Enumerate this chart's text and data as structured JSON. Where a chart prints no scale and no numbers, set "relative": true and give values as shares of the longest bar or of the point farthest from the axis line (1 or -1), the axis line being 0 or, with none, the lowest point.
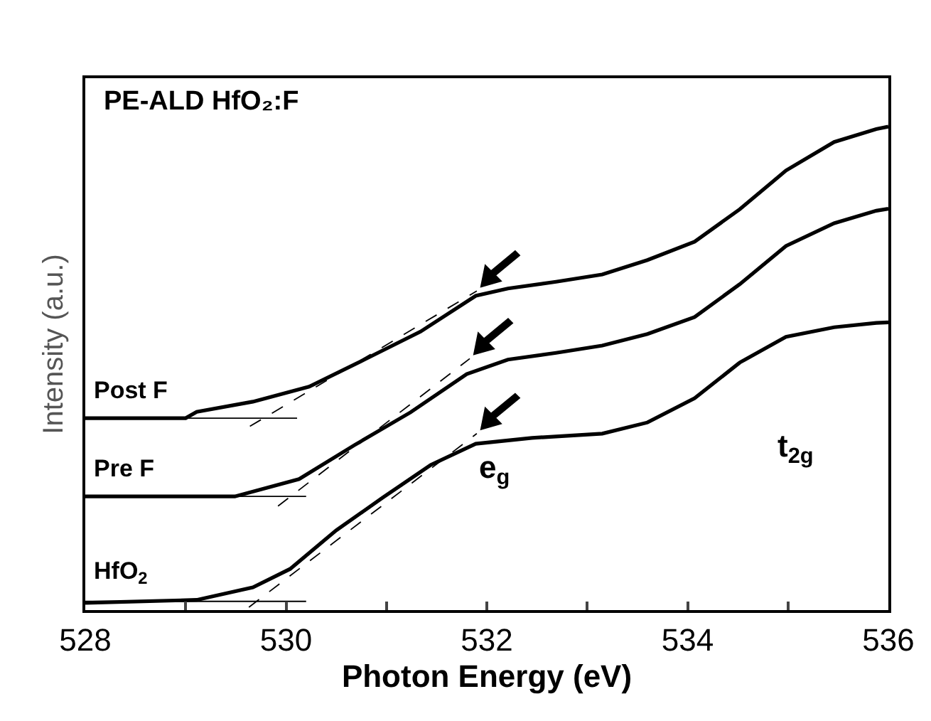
{
  "chart_data": {
    "type": "line",
    "title": "PE-ALD HfO₂:F",
    "xlabel": "Photon Energy (eV)",
    "ylabel": "Intensity (a.u.)",
    "relative": true,
    "xlim": [
      528,
      536
    ],
    "xticks": [
      528,
      {
        "value": 529,
        "label": null
      },
      530,
      {
        "value": 531,
        "label": null
      },
      532,
      {
        "value": 533,
        "label": null
      },
      534,
      {
        "value": 535,
        "label": null
      },
      536
    ],
    "tick_labels": "x",
    "legend": false,
    "marker": "none",
    "series": [
      {
        "name": "Post F",
        "color": "#000000",
        "line_style": "solid",
        "x": [
          528,
          529,
          529.11,
          529.67,
          530.23,
          530.78,
          531.34,
          531.89,
          532.21,
          532.69,
          533.15,
          533.6,
          534.07,
          534.52,
          534.98,
          535.46,
          535.88,
          536
        ],
        "values": [
          0.397,
          0.397,
          0.41,
          0.431,
          0.462,
          0.518,
          0.576,
          0.65,
          0.665,
          0.679,
          0.694,
          0.724,
          0.762,
          0.829,
          0.909,
          0.968,
          0.995,
          1.0
        ]
      },
      {
        "name": "Pre F",
        "color": "#000000",
        "line_style": "solid",
        "x": [
          528,
          529.49,
          530.13,
          530.68,
          531.24,
          531.8,
          532.21,
          532.69,
          533.15,
          533.6,
          534.07,
          534.52,
          534.98,
          535.46,
          535.88,
          536
        ],
        "values": [
          0.235,
          0.235,
          0.271,
          0.341,
          0.409,
          0.488,
          0.518,
          0.532,
          0.547,
          0.571,
          0.606,
          0.674,
          0.753,
          0.8,
          0.826,
          0.83
        ]
      },
      {
        "name": "HfO$_{2}$",
        "color": "#000000",
        "line_style": "solid",
        "x": [
          528,
          529.11,
          529.67,
          530.04,
          530.5,
          530.96,
          531.44,
          531.89,
          532.45,
          533.15,
          533.6,
          534.07,
          534.52,
          534.98,
          535.46,
          535.88,
          536
        ],
        "values": [
          0.015,
          0.021,
          0.047,
          0.085,
          0.165,
          0.232,
          0.3,
          0.344,
          0.356,
          0.365,
          0.388,
          0.438,
          0.512,
          0.565,
          0.585,
          0.594,
          0.595
        ]
      },
      {
        "color": "#000000",
        "line_style": "solid",
        "x": [
          528,
          530.11
        ],
        "values": [
          0.397,
          0.397
        ]
      },
      {
        "color": "#000000",
        "line_style": "solid",
        "x": [
          528,
          530.2
        ],
        "values": [
          0.235,
          0.235
        ]
      },
      {
        "color": "#000000",
        "line_style": "solid",
        "x": [
          528,
          530.2
        ],
        "values": [
          0.018,
          0.018
        ]
      },
      {
        "color": "#000000",
        "line_style": "dashed",
        "x": [
          529.64,
          531.9
        ],
        "values": [
          0.38,
          0.66
        ]
      },
      {
        "color": "#000000",
        "line_style": "dashed",
        "x": [
          529.92,
          531.83
        ],
        "values": [
          0.215,
          0.52
        ]
      },
      {
        "color": "#000000",
        "line_style": "dashed",
        "x": [
          529.63,
          531.9
        ],
        "values": [
          0.006,
          0.365
        ]
      }
    ],
    "annotations": [
      "e$_{g}$",
      "t$_{2g}$"
    ]
  }
}
